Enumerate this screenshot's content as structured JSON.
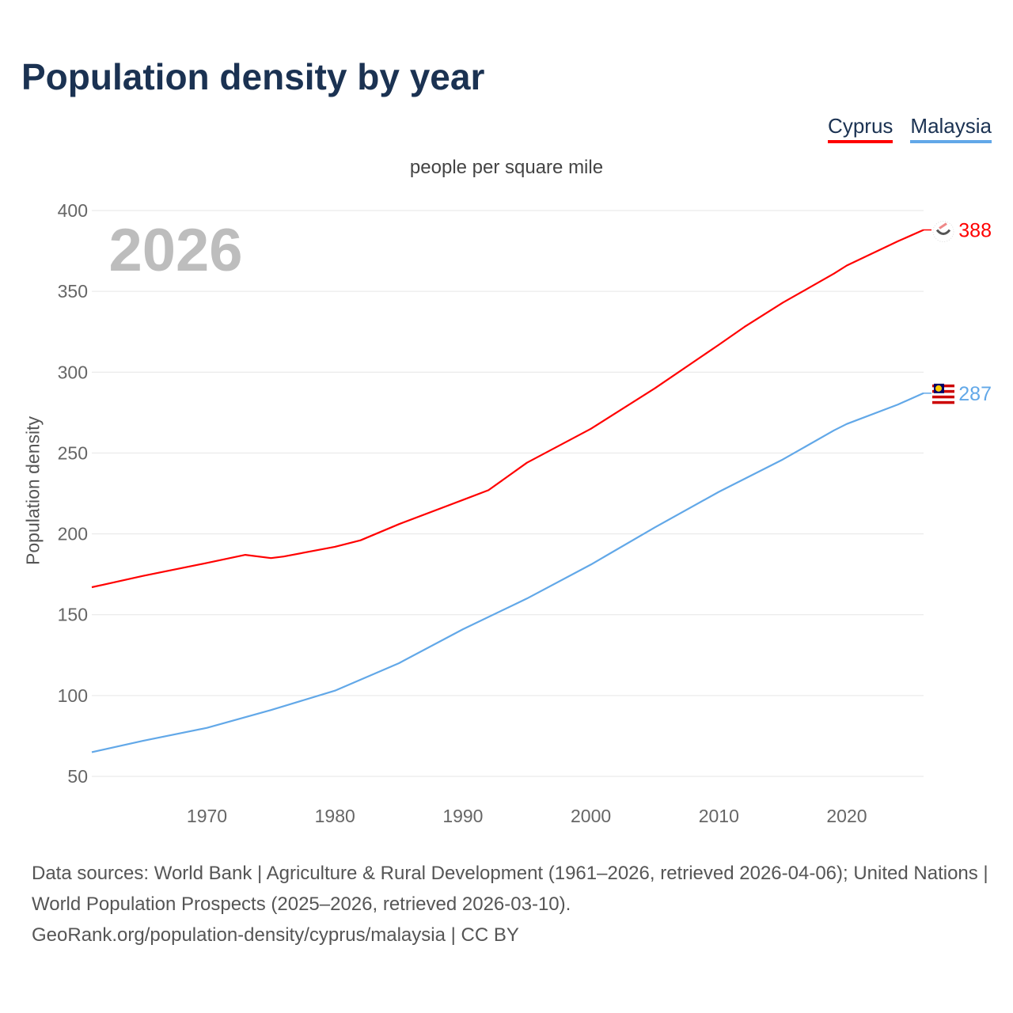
{
  "title": "Population density by year",
  "footer": {
    "sources": "Data sources: World Bank | Agriculture & Rural Development (1961–2026, retrieved 2026-04-06); United Nations | World Population Prospects (2025–2026, retrieved 2026-03-10).",
    "link": "GeoRank.org/population-density/cyprus/malaysia | CC BY"
  },
  "chart_data": {
    "type": "line",
    "title": "Population density by year",
    "subtitle": "people per square mile",
    "xlabel": "",
    "ylabel": "Population density",
    "year_label": "2026",
    "xlim": [
      1961,
      2026
    ],
    "ylim": [
      50,
      400
    ],
    "xticks": [
      1970,
      1980,
      1990,
      2000,
      2010,
      2020
    ],
    "yticks": [
      50,
      100,
      150,
      200,
      250,
      300,
      350,
      400
    ],
    "grid": true,
    "legend_placement": "top-right",
    "series": [
      {
        "name": "Cyprus",
        "color": "#ff0000",
        "end_label": "388",
        "flag": "cyprus-flag",
        "x": [
          1961,
          1965,
          1970,
          1973,
          1975,
          1976,
          1980,
          1982,
          1985,
          1990,
          1992,
          1995,
          2000,
          2005,
          2010,
          2012,
          2015,
          2017,
          2019,
          2020,
          2024,
          2026
        ],
        "y": [
          167,
          174,
          182,
          187,
          185,
          186,
          192,
          196,
          206,
          221,
          227,
          244,
          265,
          290,
          317,
          328,
          343,
          352,
          361,
          366,
          381,
          388
        ]
      },
      {
        "name": "Malaysia",
        "color": "#62a8e8",
        "end_label": "287",
        "flag": "malaysia-flag",
        "x": [
          1961,
          1965,
          1970,
          1975,
          1980,
          1985,
          1990,
          1995,
          2000,
          2005,
          2010,
          2015,
          2019,
          2020,
          2024,
          2026
        ],
        "y": [
          65,
          72,
          80,
          91,
          103,
          120,
          141,
          160,
          181,
          204,
          226,
          246,
          264,
          268,
          280,
          287
        ]
      }
    ]
  }
}
